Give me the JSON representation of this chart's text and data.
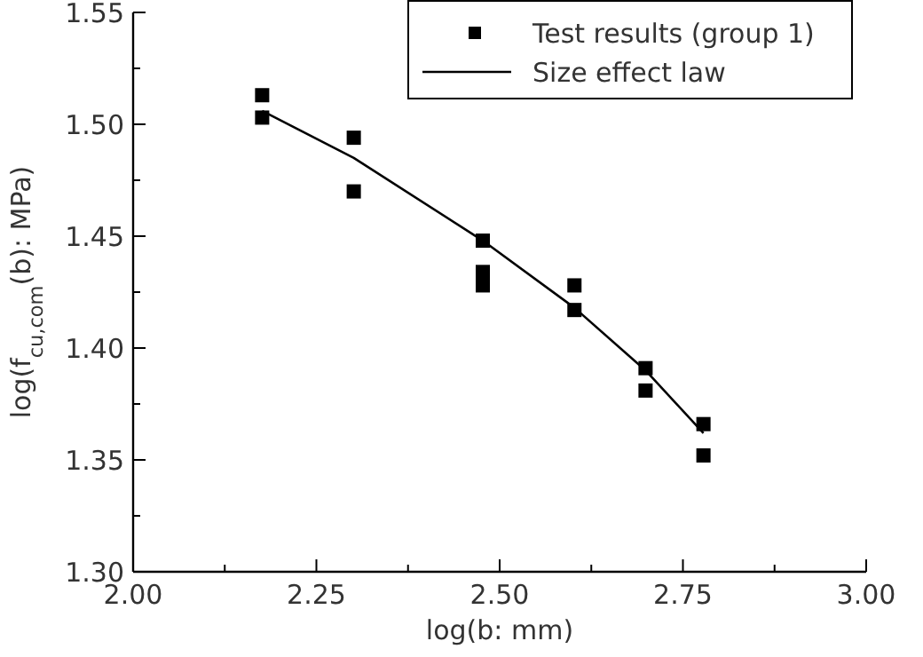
{
  "chart_data": {
    "type": "scatter",
    "xlabel": "log(b: mm)",
    "ylabel": "log(f$_{cu,com}$(b): MPa)",
    "xlim": [
      2.0,
      3.0
    ],
    "ylim": [
      1.3,
      1.55
    ],
    "xticks": [
      {
        "value": 2.0,
        "label": "2.00"
      },
      {
        "value": 2.125,
        "label": null
      },
      {
        "value": 2.25,
        "label": "2.25"
      },
      {
        "value": 2.375,
        "label": null
      },
      {
        "value": 2.5,
        "label": "2.50"
      },
      {
        "value": 2.625,
        "label": null
      },
      {
        "value": 2.75,
        "label": "2.75"
      },
      {
        "value": 2.875,
        "label": null
      },
      {
        "value": 3.0,
        "label": "3.00"
      }
    ],
    "yticks": [
      {
        "value": 1.3,
        "label": "1.30"
      },
      {
        "value": 1.325,
        "label": null
      },
      {
        "value": 1.35,
        "label": "1.35"
      },
      {
        "value": 1.375,
        "label": null
      },
      {
        "value": 1.4,
        "label": "1.40"
      },
      {
        "value": 1.425,
        "label": null
      },
      {
        "value": 1.45,
        "label": "1.45"
      },
      {
        "value": 1.475,
        "label": null
      },
      {
        "value": 1.5,
        "label": "1.50"
      },
      {
        "value": 1.525,
        "label": null
      },
      {
        "value": 1.55,
        "label": "1.55"
      }
    ],
    "grid": false,
    "legend": "top right",
    "series": [
      {
        "name": "Test results (group 1)",
        "marker": "square",
        "color": "#000000",
        "x": [
          2.176,
          2.176,
          2.301,
          2.301,
          2.477,
          2.477,
          2.477,
          2.602,
          2.602,
          2.699,
          2.699,
          2.778,
          2.778
        ],
        "values": [
          1.513,
          1.503,
          1.494,
          1.47,
          1.448,
          1.434,
          1.428,
          1.428,
          1.417,
          1.391,
          1.381,
          1.366,
          1.352
        ]
      },
      {
        "name": "Size effect law",
        "type": "line",
        "line_style": "solid",
        "color": "#000000",
        "x": [
          2.176,
          2.301,
          2.477,
          2.602,
          2.699,
          2.778
        ],
        "values": [
          1.506,
          1.485,
          1.448,
          1.418,
          1.39,
          1.362
        ]
      }
    ]
  }
}
